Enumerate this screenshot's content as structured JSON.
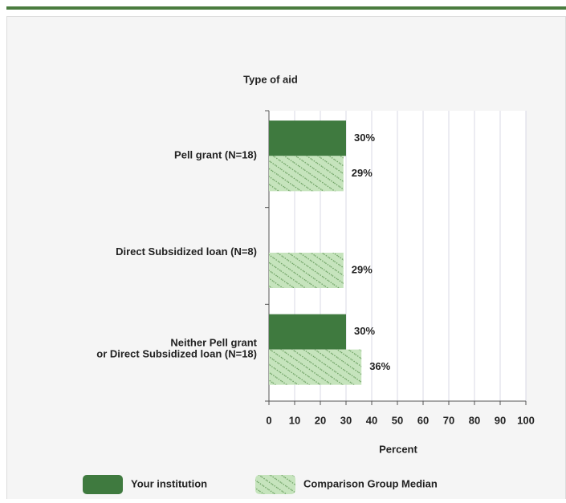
{
  "chart_data": {
    "type": "hbar",
    "title": "Type of aid",
    "xlabel": "Percent",
    "categories": [
      [
        "Pell grant  (N=18)"
      ],
      [
        "Direct Subsidized loan (N=8)"
      ],
      [
        "Neither Pell grant",
        "or Direct Subsidized loan (N=18)"
      ]
    ],
    "series": [
      {
        "name": "Your institution",
        "color": "#3f7a3f",
        "values": [
          30,
          null,
          30
        ],
        "value_labels": [
          "30%",
          null,
          "30%"
        ]
      },
      {
        "name": "Comparison Group Median",
        "color": "#c6e4bd",
        "pattern": "hatched",
        "values": [
          29,
          29,
          36
        ],
        "value_labels": [
          "29%",
          "29%",
          "36%"
        ]
      }
    ],
    "xlim": [
      0,
      100
    ],
    "xticks": [
      0,
      10,
      20,
      30,
      40,
      50,
      60,
      70,
      80,
      90,
      100
    ],
    "grid": true,
    "legend": "bottom"
  }
}
